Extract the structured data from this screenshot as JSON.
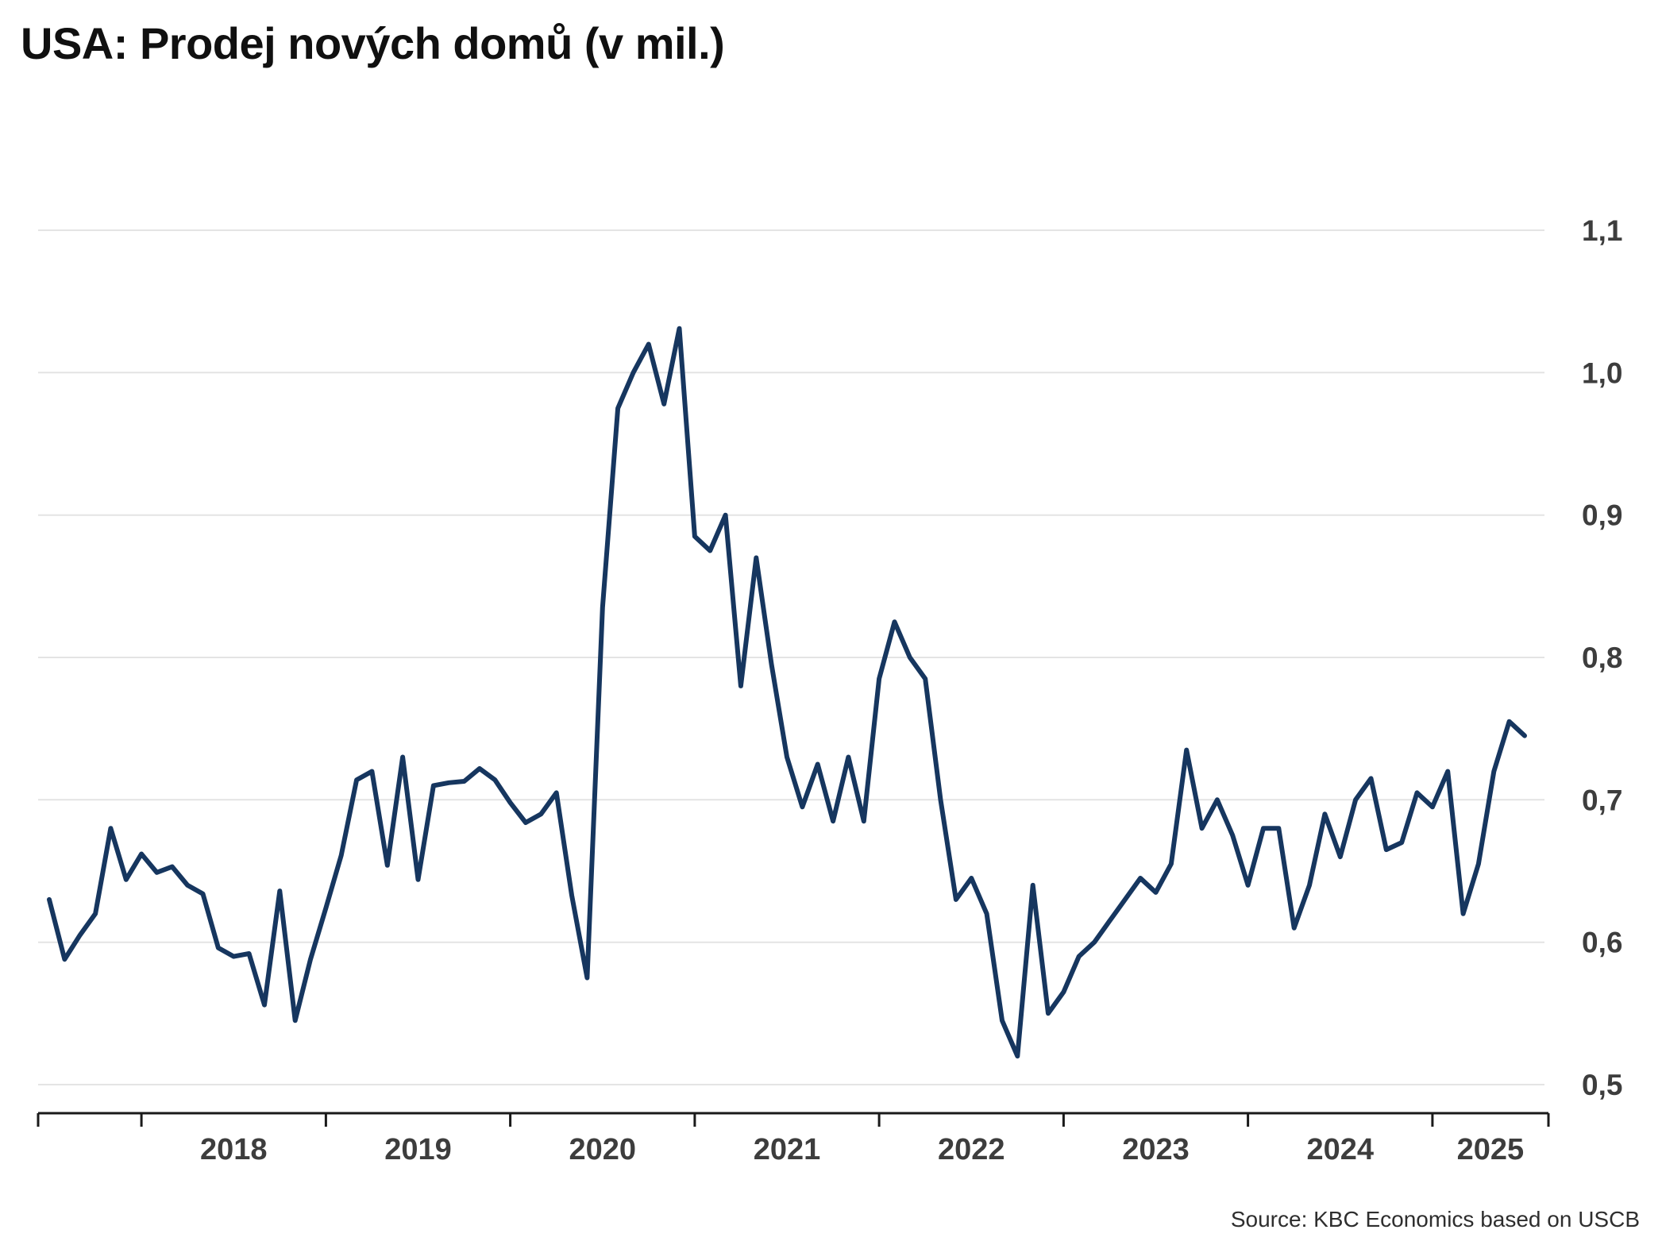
{
  "chart_data": {
    "type": "line",
    "title": "USA: Prodej nových domů (v mil.)",
    "source_note": "Source: KBC Economics based on USCB",
    "frequency": "monthly",
    "x_start": "2017-07",
    "x_end": "2025-07",
    "ylim": [
      0.5,
      1.1
    ],
    "grid": "horizontal",
    "legend": "none",
    "colors": {
      "line": "#16365f",
      "grid": "#e4e4e4",
      "axis": "#1a1a1a",
      "tick_label": "#3d3d3d",
      "title_text": "#101010"
    },
    "x_tick_labels": [
      "2018",
      "2019",
      "2020",
      "2021",
      "2022",
      "2023",
      "2024",
      "2025"
    ],
    "y_ticks": [
      {
        "value": 0.5,
        "label": "0,5"
      },
      {
        "value": 0.6,
        "label": "0,6"
      },
      {
        "value": 0.7,
        "label": "0,7"
      },
      {
        "value": 0.8,
        "label": "0,8"
      },
      {
        "value": 0.9,
        "label": "0,9"
      },
      {
        "value": 1.0,
        "label": "1,0"
      },
      {
        "value": 1.1,
        "label": "1,1"
      }
    ],
    "series": [
      {
        "name": "Prodej nových domů (v mil.)",
        "values": [
          0.63,
          0.588,
          0.605,
          0.62,
          0.68,
          0.644,
          0.662,
          0.649,
          0.653,
          0.64,
          0.634,
          0.596,
          0.59,
          0.592,
          0.556,
          0.636,
          0.545,
          0.588,
          0.624,
          0.661,
          0.714,
          0.72,
          0.654,
          0.73,
          0.644,
          0.71,
          0.712,
          0.713,
          0.722,
          0.714,
          0.698,
          0.684,
          0.69,
          0.705,
          0.633,
          0.575,
          0.835,
          0.975,
          1.0,
          1.02,
          0.978,
          1.031,
          0.885,
          0.875,
          0.9,
          0.78,
          0.87,
          0.795,
          0.73,
          0.695,
          0.725,
          0.685,
          0.73,
          0.685,
          0.785,
          0.825,
          0.8,
          0.785,
          0.7,
          0.63,
          0.645,
          0.62,
          0.545,
          0.52,
          0.64,
          0.55,
          0.565,
          0.59,
          0.6,
          0.615,
          0.63,
          0.645,
          0.635,
          0.655,
          0.735,
          0.68,
          0.7,
          0.675,
          0.64,
          0.68,
          0.68,
          0.61,
          0.64,
          0.69,
          0.66,
          0.7,
          0.715,
          0.665,
          0.67,
          0.705,
          0.695,
          0.72,
          0.62,
          0.655,
          0.72,
          0.755,
          0.745
        ]
      }
    ]
  }
}
